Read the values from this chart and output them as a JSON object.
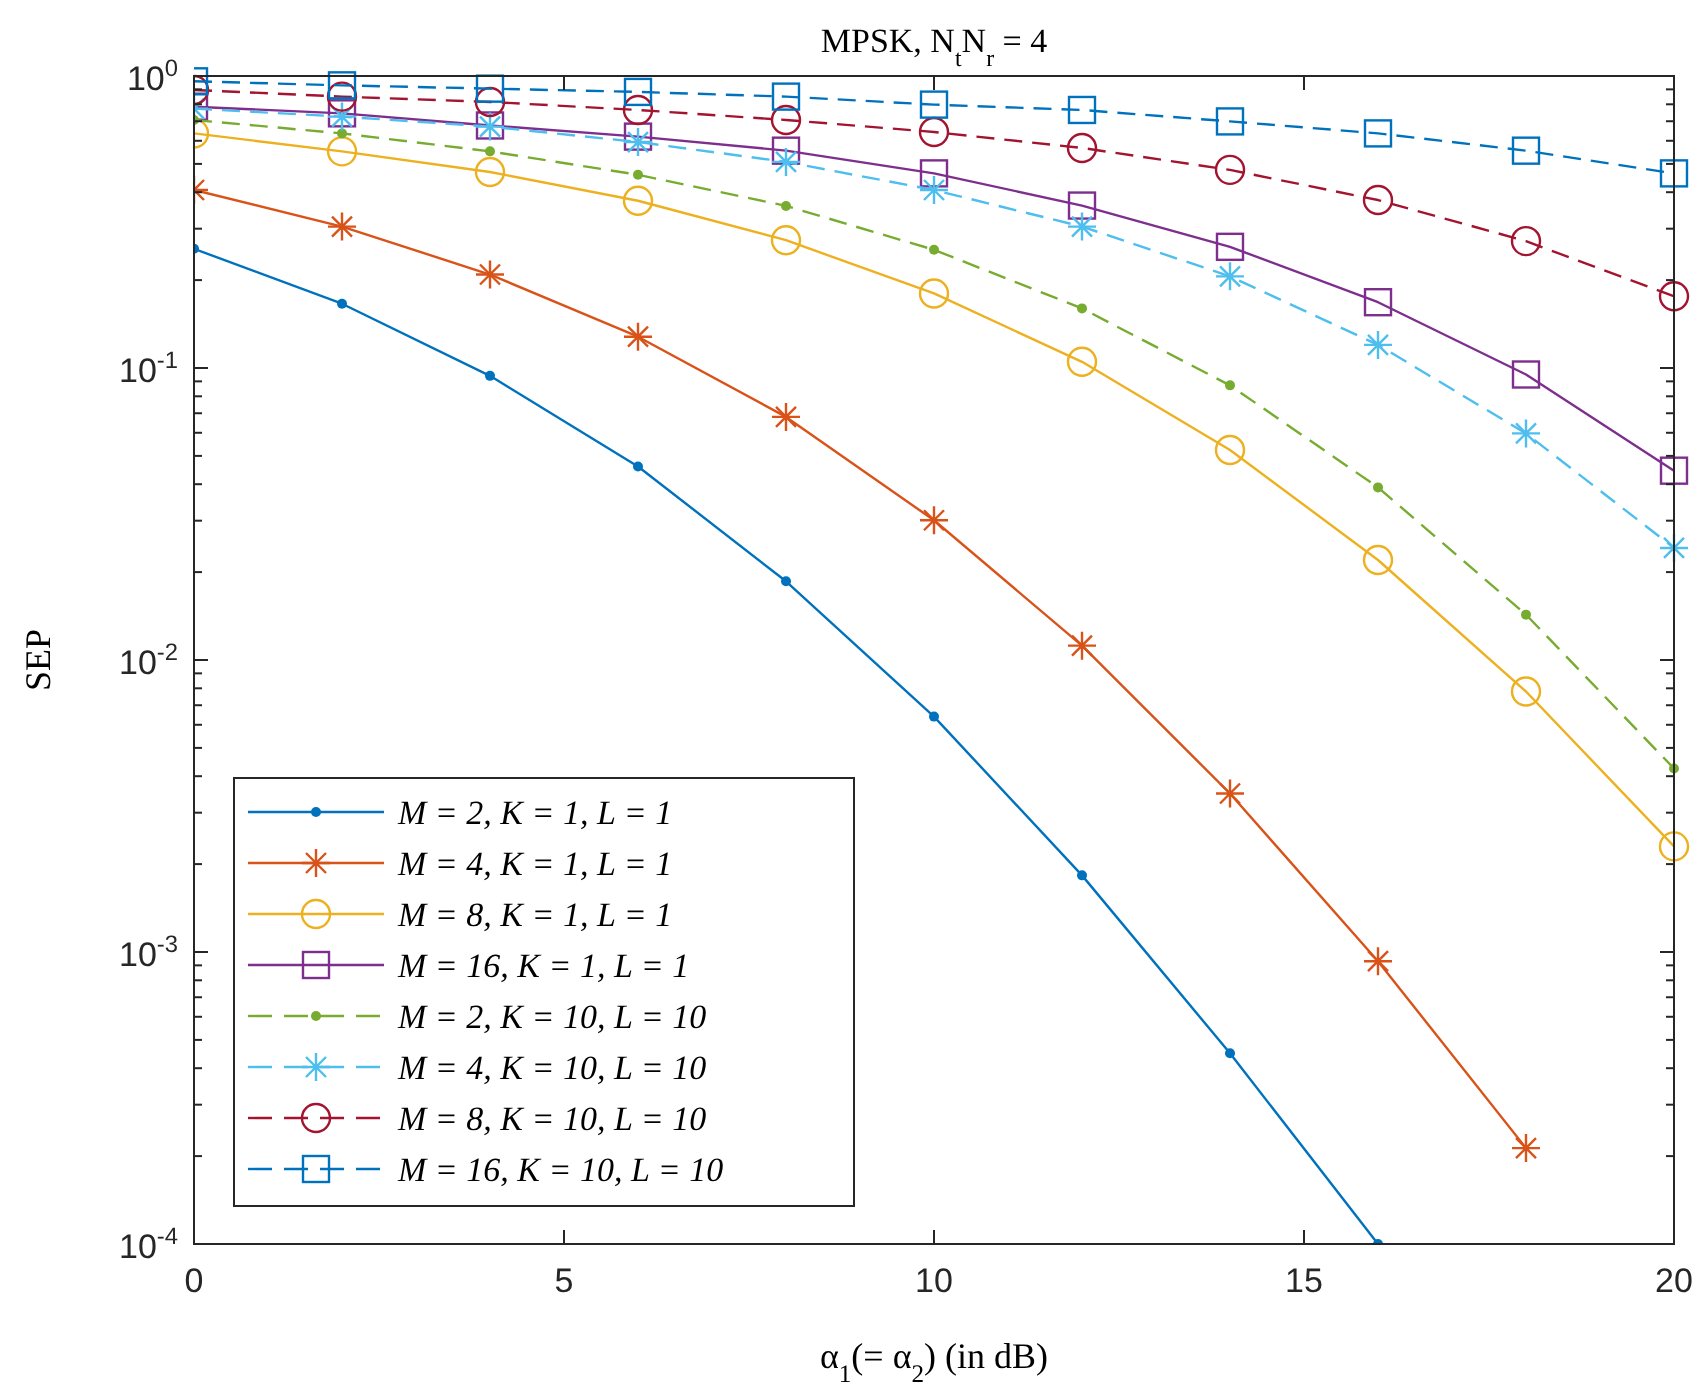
{
  "chart_data": {
    "type": "line",
    "title": "MPSK, N$_{t}$N$_{r}$ = 4",
    "xlabel": "α$_{1}$(= α$_{2}$) (in dB)",
    "ylabel": "SEP",
    "x": [
      0,
      2,
      4,
      6,
      8,
      10,
      12,
      14,
      16,
      18,
      20
    ],
    "xlim": [
      0,
      20
    ],
    "xticks": [
      0,
      5,
      10,
      15,
      20
    ],
    "ylim": [
      0.0001,
      1
    ],
    "log": true,
    "yticks": [
      {
        "value": 0.0001,
        "label": "10$^{-4}$"
      },
      {
        "value": 0.0002,
        "label": null
      },
      {
        "value": 0.0003,
        "label": null
      },
      {
        "value": 0.0004,
        "label": null
      },
      {
        "value": 0.0005,
        "label": null
      },
      {
        "value": 0.0006,
        "label": null
      },
      {
        "value": 0.0007,
        "label": null
      },
      {
        "value": 0.0008,
        "label": null
      },
      {
        "value": 0.0009,
        "label": null
      },
      {
        "value": 0.001,
        "label": "10$^{-3}$"
      },
      {
        "value": 0.002,
        "label": null
      },
      {
        "value": 0.003,
        "label": null
      },
      {
        "value": 0.004,
        "label": null
      },
      {
        "value": 0.005,
        "label": null
      },
      {
        "value": 0.006,
        "label": null
      },
      {
        "value": 0.007,
        "label": null
      },
      {
        "value": 0.008,
        "label": null
      },
      {
        "value": 0.009,
        "label": null
      },
      {
        "value": 0.01,
        "label": "10$^{-2}$"
      },
      {
        "value": 0.02,
        "label": null
      },
      {
        "value": 0.03,
        "label": null
      },
      {
        "value": 0.04,
        "label": null
      },
      {
        "value": 0.05,
        "label": null
      },
      {
        "value": 0.06,
        "label": null
      },
      {
        "value": 0.07,
        "label": null
      },
      {
        "value": 0.08,
        "label": null
      },
      {
        "value": 0.09,
        "label": null
      },
      {
        "value": 0.1,
        "label": "10$^{-1}$"
      },
      {
        "value": 0.2,
        "label": null
      },
      {
        "value": 0.3,
        "label": null
      },
      {
        "value": 0.4,
        "label": null
      },
      {
        "value": 0.5,
        "label": null
      },
      {
        "value": 0.6,
        "label": null
      },
      {
        "value": 0.7,
        "label": null
      },
      {
        "value": 0.8,
        "label": null
      },
      {
        "value": 0.9,
        "label": null
      },
      {
        "value": 1,
        "label": "10$^{0}$"
      }
    ],
    "grid": false,
    "legend": "bottom left",
    "series": [
      {
        "name": "M = 2, K = 1, L = 1",
        "color": "#0072bd",
        "marker": "point",
        "line_style": "solid",
        "values": [
          0.256,
          0.166,
          0.094,
          0.046,
          0.0186,
          0.0064,
          0.00183,
          0.00045,
          0.0001,
          null,
          null
        ]
      },
      {
        "name": "M = 4, K = 1, L = 1",
        "color": "#d95319",
        "marker": "cross",
        "line_style": "solid",
        "values": [
          0.407,
          0.305,
          0.209,
          0.128,
          0.068,
          0.0301,
          0.0112,
          0.00349,
          0.00093,
          0.000213,
          null
        ]
      },
      {
        "name": "M = 8, K = 1, L = 1",
        "color": "#edb120",
        "marker": "circle",
        "line_style": "solid",
        "values": [
          0.636,
          0.552,
          0.469,
          0.374,
          0.274,
          0.18,
          0.105,
          0.0524,
          0.022,
          0.0078,
          0.0023
        ]
      },
      {
        "name": "M = 16, K = 1, L = 1",
        "color": "#7e2f8e",
        "marker": "square",
        "line_style": "solid",
        "values": [
          0.785,
          0.745,
          0.677,
          0.62,
          0.555,
          0.464,
          0.36,
          0.26,
          0.168,
          0.095,
          0.0445
        ]
      },
      {
        "name": "M = 2, K = 10, L = 10",
        "color": "#77ac30",
        "marker": "point",
        "line_style": "dashed",
        "values": [
          0.707,
          0.636,
          0.552,
          0.459,
          0.359,
          0.254,
          0.16,
          0.0872,
          0.039,
          0.0143,
          0.00425
        ]
      },
      {
        "name": "M = 4, K = 10, L = 10",
        "color": "#4dbeee",
        "marker": "cross",
        "line_style": "dashed",
        "values": [
          0.773,
          0.726,
          0.671,
          0.594,
          0.508,
          0.407,
          0.305,
          0.206,
          0.12,
          0.0597,
          0.0242
        ]
      },
      {
        "name": "M = 8, K = 10, L = 10",
        "color": "#a2142f",
        "marker": "circle",
        "line_style": "dashed",
        "values": [
          0.896,
          0.85,
          0.815,
          0.765,
          0.707,
          0.643,
          0.567,
          0.477,
          0.376,
          0.272,
          0.176
        ]
      },
      {
        "name": "M = 16, K = 10, L = 10",
        "color": "#0072bd",
        "marker": "square",
        "line_style": "dashed",
        "values": [
          0.959,
          0.929,
          0.905,
          0.882,
          0.85,
          0.798,
          0.765,
          0.699,
          0.636,
          0.555,
          0.464
        ]
      }
    ]
  }
}
